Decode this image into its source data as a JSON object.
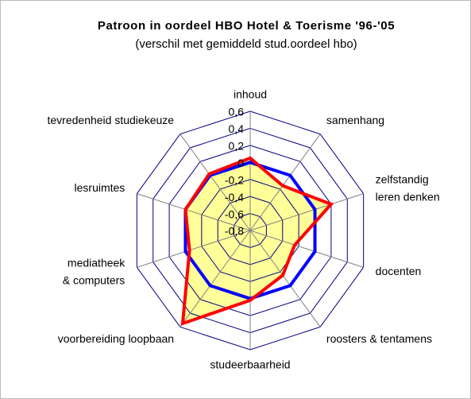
{
  "chart_data": {
    "type": "radar",
    "title": "Patroon in oordeel HBO Hotel & Toerisme '96-'05",
    "subtitle": "(verschil met gemiddeld stud.oordeel hbo)",
    "categories": [
      "inhoud",
      "samenhang",
      "zelfstandig\nleren denken",
      "docenten",
      "roosters & tentamens",
      "studeerbaarheid",
      "voorbereiding loopbaan",
      "mediatheek\n& computers",
      "lesruimtes",
      "tevredenheid studiekeuze"
    ],
    "series": [
      {
        "color": "#ff0000",
        "fill": "#ffff99",
        "values": [
          0.05,
          -0.15,
          0.2,
          -0.25,
          -0.15,
          0.02,
          0.55,
          -0.05,
          0,
          0.02
        ]
      },
      {
        "color": "#0000ff",
        "values": [
          0,
          0,
          0,
          0,
          0,
          0,
          0,
          0,
          0,
          0
        ]
      }
    ],
    "ylim": [
      -0.8,
      0.6
    ],
    "yticks": [
      {
        "value": 0.6,
        "label": "0,6"
      },
      {
        "value": 0.4,
        "label": "0,4"
      },
      {
        "value": 0.2,
        "label": "0,2"
      },
      0,
      {
        "value": -0.2,
        "label": "-0,2"
      },
      {
        "value": -0.4,
        "label": "-0,4"
      },
      {
        "value": -0.6,
        "label": "-0,6"
      },
      {
        "value": -0.8,
        "label": "-0,8"
      }
    ]
  }
}
